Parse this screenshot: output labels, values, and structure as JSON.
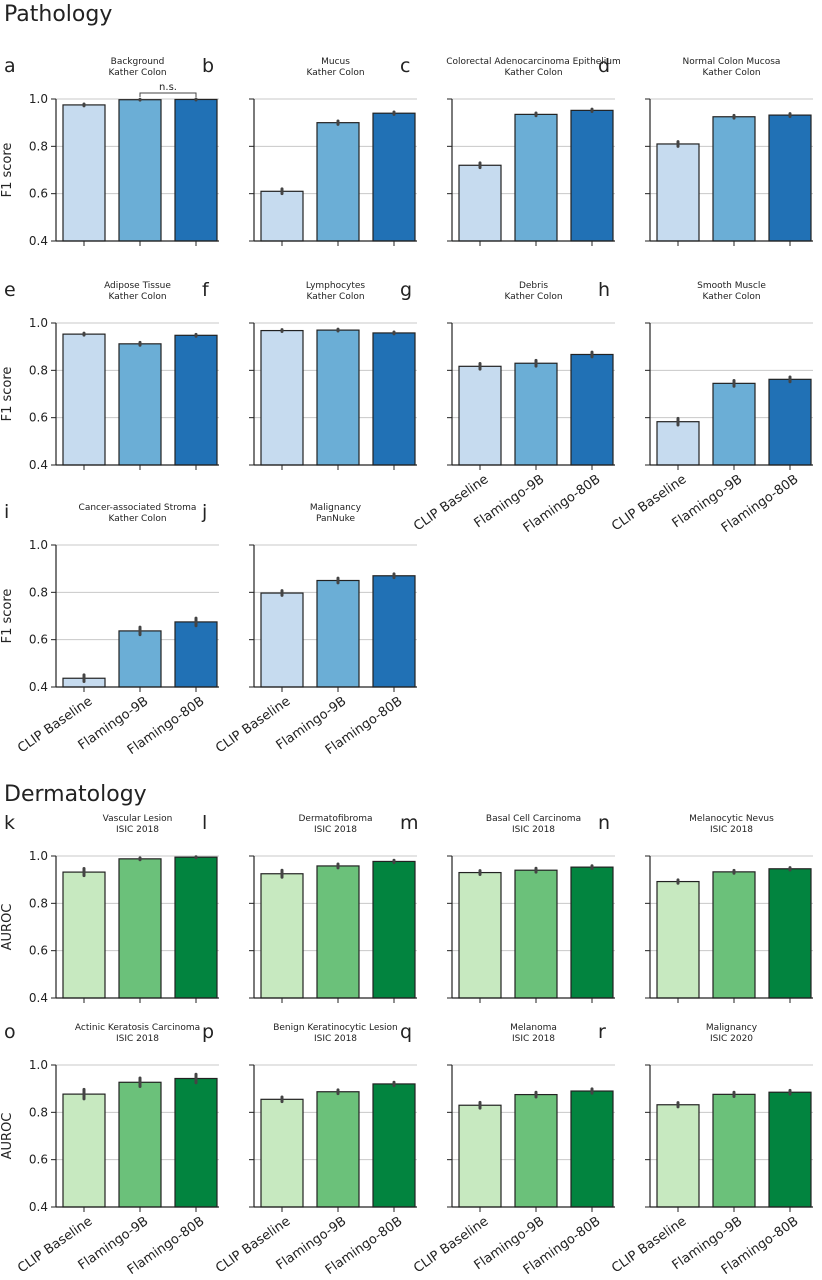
{
  "sections": [
    {
      "title": "Pathology"
    },
    {
      "title": "Dermatology"
    }
  ],
  "chart_data": [
    {
      "type": "bar",
      "letter": "a",
      "title": [
        "Background",
        "Kather Colon"
      ],
      "ylabel": "F1 score",
      "categories": [
        "CLIP Baseline",
        "Flamingo-9B",
        "Flamingo-80B"
      ],
      "values": [
        0.975,
        0.997,
        0.998
      ],
      "errors": [
        0.004,
        0.002,
        0.002
      ],
      "ylim": [
        0.4,
        1.0
      ],
      "yticks": [
        "0.4",
        "0.6",
        "0.8",
        "1.0"
      ],
      "annotation": "n.s.",
      "colors": [
        "#c6dbef",
        "#6baed6",
        "#2171b5"
      ],
      "show_xticks": false
    },
    {
      "type": "bar",
      "letter": "b",
      "title": [
        "Mucus",
        "Kather Colon"
      ],
      "ylabel": "",
      "categories": [
        "CLIP Baseline",
        "Flamingo-9B",
        "Flamingo-80B"
      ],
      "values": [
        0.61,
        0.9,
        0.94
      ],
      "errors": [
        0.01,
        0.007,
        0.005
      ],
      "ylim": [
        0.4,
        1.0
      ],
      "yticks": [],
      "colors": [
        "#c6dbef",
        "#6baed6",
        "#2171b5"
      ],
      "show_xticks": false
    },
    {
      "type": "bar",
      "letter": "c",
      "title": [
        "Colorectal Adenocarcinoma Epithelium",
        "Kather Colon"
      ],
      "ylabel": "",
      "categories": [
        "CLIP Baseline",
        "Flamingo-9B",
        "Flamingo-80B"
      ],
      "values": [
        0.72,
        0.935,
        0.952
      ],
      "errors": [
        0.01,
        0.006,
        0.005
      ],
      "ylim": [
        0.4,
        1.0
      ],
      "yticks": [],
      "colors": [
        "#c6dbef",
        "#6baed6",
        "#2171b5"
      ],
      "show_xticks": false
    },
    {
      "type": "bar",
      "letter": "d",
      "title": [
        "Normal Colon Mucosa",
        "Kather Colon"
      ],
      "ylabel": "",
      "categories": [
        "CLIP Baseline",
        "Flamingo-9B",
        "Flamingo-80B"
      ],
      "values": [
        0.81,
        0.925,
        0.932
      ],
      "errors": [
        0.01,
        0.006,
        0.006
      ],
      "ylim": [
        0.4,
        1.0
      ],
      "yticks": [],
      "colors": [
        "#c6dbef",
        "#6baed6",
        "#2171b5"
      ],
      "show_xticks": false
    },
    {
      "type": "bar",
      "letter": "e",
      "title": [
        "Adipose Tissue",
        "Kather Colon"
      ],
      "ylabel": "F1 score",
      "categories": [
        "CLIP Baseline",
        "Flamingo-9B",
        "Flamingo-80B"
      ],
      "values": [
        0.953,
        0.912,
        0.948
      ],
      "errors": [
        0.004,
        0.006,
        0.004
      ],
      "ylim": [
        0.4,
        1.0
      ],
      "yticks": [
        "0.4",
        "0.6",
        "0.8",
        "1.0"
      ],
      "colors": [
        "#c6dbef",
        "#6baed6",
        "#2171b5"
      ],
      "show_xticks": false
    },
    {
      "type": "bar",
      "letter": "f",
      "title": [
        "Lymphocytes",
        "Kather Colon"
      ],
      "ylabel": "",
      "categories": [
        "CLIP Baseline",
        "Flamingo-9B",
        "Flamingo-80B"
      ],
      "values": [
        0.968,
        0.97,
        0.958
      ],
      "errors": [
        0.004,
        0.004,
        0.004
      ],
      "ylim": [
        0.4,
        1.0
      ],
      "yticks": [],
      "colors": [
        "#c6dbef",
        "#6baed6",
        "#2171b5"
      ],
      "show_xticks": false
    },
    {
      "type": "bar",
      "letter": "g",
      "title": [
        "Debris",
        "Kather Colon"
      ],
      "ylabel": "",
      "categories": [
        "CLIP Baseline",
        "Flamingo-9B",
        "Flamingo-80B"
      ],
      "values": [
        0.817,
        0.83,
        0.867
      ],
      "errors": [
        0.012,
        0.012,
        0.01
      ],
      "ylim": [
        0.4,
        1.0
      ],
      "yticks": [],
      "colors": [
        "#c6dbef",
        "#6baed6",
        "#2171b5"
      ],
      "show_xticks": true
    },
    {
      "type": "bar",
      "letter": "h",
      "title": [
        "Smooth Muscle",
        "Kather Colon"
      ],
      "ylabel": "",
      "categories": [
        "CLIP Baseline",
        "Flamingo-9B",
        "Flamingo-80B"
      ],
      "values": [
        0.583,
        0.745,
        0.762
      ],
      "errors": [
        0.014,
        0.012,
        0.01
      ],
      "ylim": [
        0.4,
        1.0
      ],
      "yticks": [],
      "colors": [
        "#c6dbef",
        "#6baed6",
        "#2171b5"
      ],
      "show_xticks": true
    },
    {
      "type": "bar",
      "letter": "i",
      "title": [
        "Cancer-associated Stroma",
        "Kather Colon"
      ],
      "ylabel": "F1 score",
      "categories": [
        "CLIP Baseline",
        "Flamingo-9B",
        "Flamingo-80B"
      ],
      "values": [
        0.437,
        0.637,
        0.675
      ],
      "errors": [
        0.014,
        0.016,
        0.016
      ],
      "ylim": [
        0.4,
        1.0
      ],
      "yticks": [
        "0.4",
        "0.6",
        "0.8",
        "1.0"
      ],
      "colors": [
        "#c6dbef",
        "#6baed6",
        "#2171b5"
      ],
      "show_xticks": true
    },
    {
      "type": "bar",
      "letter": "j",
      "title": [
        "Malignancy",
        "PanNuke"
      ],
      "ylabel": "",
      "categories": [
        "CLIP Baseline",
        "Flamingo-9B",
        "Flamingo-80B"
      ],
      "values": [
        0.797,
        0.85,
        0.87
      ],
      "errors": [
        0.01,
        0.01,
        0.008
      ],
      "ylim": [
        0.4,
        1.0
      ],
      "yticks": [],
      "colors": [
        "#c6dbef",
        "#6baed6",
        "#2171b5"
      ],
      "show_xticks": true
    },
    {
      "type": "bar",
      "letter": "k",
      "title": [
        "Vascular Lesion",
        "ISIC 2018"
      ],
      "ylabel": "AUROC",
      "categories": [
        "CLIP Baseline",
        "Flamingo-9B",
        "Flamingo-80B"
      ],
      "values": [
        0.932,
        0.988,
        0.995
      ],
      "errors": [
        0.015,
        0.004,
        0.002
      ],
      "ylim": [
        0.4,
        1.0
      ],
      "yticks": [
        "0.4",
        "0.6",
        "0.8",
        "1.0"
      ],
      "colors": [
        "#c7e9c0",
        "#6bc17a",
        "#02843f"
      ],
      "show_xticks": false
    },
    {
      "type": "bar",
      "letter": "l",
      "title": [
        "Dermatofibroma",
        "ISIC 2018"
      ],
      "ylabel": "",
      "categories": [
        "CLIP Baseline",
        "Flamingo-9B",
        "Flamingo-80B"
      ],
      "values": [
        0.925,
        0.958,
        0.977
      ],
      "errors": [
        0.015,
        0.008,
        0.005
      ],
      "ylim": [
        0.4,
        1.0
      ],
      "yticks": [],
      "colors": [
        "#c7e9c0",
        "#6bc17a",
        "#02843f"
      ],
      "show_xticks": false
    },
    {
      "type": "bar",
      "letter": "m",
      "title": [
        "Basal Cell Carcinoma",
        "ISIC 2018"
      ],
      "ylabel": "",
      "categories": [
        "CLIP Baseline",
        "Flamingo-9B",
        "Flamingo-80B"
      ],
      "values": [
        0.93,
        0.94,
        0.953
      ],
      "errors": [
        0.008,
        0.008,
        0.006
      ],
      "ylim": [
        0.4,
        1.0
      ],
      "yticks": [],
      "colors": [
        "#c7e9c0",
        "#6bc17a",
        "#02843f"
      ],
      "show_xticks": false
    },
    {
      "type": "bar",
      "letter": "n",
      "title": [
        "Melanocytic Nevus",
        "ISIC 2018"
      ],
      "ylabel": "",
      "categories": [
        "CLIP Baseline",
        "Flamingo-9B",
        "Flamingo-80B"
      ],
      "values": [
        0.892,
        0.933,
        0.946
      ],
      "errors": [
        0.007,
        0.006,
        0.005
      ],
      "ylim": [
        0.4,
        1.0
      ],
      "yticks": [],
      "colors": [
        "#c7e9c0",
        "#6bc17a",
        "#02843f"
      ],
      "show_xticks": false
    },
    {
      "type": "bar",
      "letter": "o",
      "title": [
        "Actinic Keratosis Carcinoma",
        "ISIC 2018"
      ],
      "ylabel": "AUROC",
      "categories": [
        "CLIP Baseline",
        "Flamingo-9B",
        "Flamingo-80B"
      ],
      "values": [
        0.877,
        0.927,
        0.943
      ],
      "errors": [
        0.02,
        0.018,
        0.018
      ],
      "ylim": [
        0.4,
        1.0
      ],
      "yticks": [
        "0.4",
        "0.6",
        "0.8",
        "1.0"
      ],
      "colors": [
        "#c7e9c0",
        "#6bc17a",
        "#02843f"
      ],
      "show_xticks": true
    },
    {
      "type": "bar",
      "letter": "p",
      "title": [
        "Benign Keratinocytic Lesion",
        "ISIC 2018"
      ],
      "ylabel": "",
      "categories": [
        "CLIP Baseline",
        "Flamingo-9B",
        "Flamingo-80B"
      ],
      "values": [
        0.855,
        0.887,
        0.92
      ],
      "errors": [
        0.01,
        0.008,
        0.007
      ],
      "ylim": [
        0.4,
        1.0
      ],
      "yticks": [],
      "colors": [
        "#c7e9c0",
        "#6bc17a",
        "#02843f"
      ],
      "show_xticks": true
    },
    {
      "type": "bar",
      "letter": "q",
      "title": [
        "Melanoma",
        "ISIC 2018"
      ],
      "ylabel": "",
      "categories": [
        "CLIP Baseline",
        "Flamingo-9B",
        "Flamingo-80B"
      ],
      "values": [
        0.83,
        0.875,
        0.89
      ],
      "errors": [
        0.012,
        0.01,
        0.009
      ],
      "ylim": [
        0.4,
        1.0
      ],
      "yticks": [],
      "colors": [
        "#c7e9c0",
        "#6bc17a",
        "#02843f"
      ],
      "show_xticks": true
    },
    {
      "type": "bar",
      "letter": "r",
      "title": [
        "Malignancy",
        "ISIC 2020"
      ],
      "ylabel": "",
      "categories": [
        "CLIP Baseline",
        "Flamingo-9B",
        "Flamingo-80B"
      ],
      "values": [
        0.832,
        0.876,
        0.885
      ],
      "errors": [
        0.009,
        0.009,
        0.008
      ],
      "ylim": [
        0.4,
        1.0
      ],
      "yticks": [],
      "colors": [
        "#c7e9c0",
        "#6bc17a",
        "#02843f"
      ],
      "show_xticks": true
    }
  ]
}
